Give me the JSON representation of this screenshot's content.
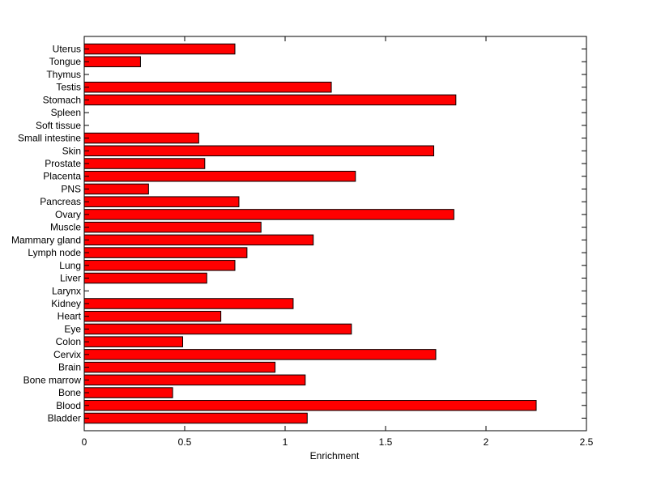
{
  "chart_data": {
    "type": "bar",
    "orientation": "horizontal",
    "title": "",
    "xlabel": "Enrichment",
    "ylabel": "",
    "xlim": [
      0,
      2.5
    ],
    "xticks": [
      "0",
      "0.5",
      "1",
      "1.5",
      "2",
      "2.5"
    ],
    "grid": false,
    "legend": "none",
    "bar_color": "#ff0000",
    "bar_edge_color": "#000000",
    "categories": [
      "Bladder",
      "Blood",
      "Bone",
      "Bone marrow",
      "Brain",
      "Cervix",
      "Colon",
      "Eye",
      "Heart",
      "Kidney",
      "Larynx",
      "Liver",
      "Lung",
      "Lymph node",
      "Mammary gland",
      "Muscle",
      "Ovary",
      "Pancreas",
      "PNS",
      "Placenta",
      "Prostate",
      "Skin",
      "Small intestine",
      "Soft tissue",
      "Spleen",
      "Stomach",
      "Testis",
      "Thymus",
      "Tongue",
      "Uterus"
    ],
    "values": [
      1.11,
      2.25,
      0.44,
      1.1,
      0.95,
      1.75,
      0.49,
      1.33,
      0.68,
      1.04,
      0,
      0.61,
      0.75,
      0.81,
      1.14,
      0.88,
      1.84,
      0.77,
      0.32,
      1.35,
      0.6,
      1.74,
      0.57,
      0,
      0,
      1.85,
      1.23,
      0,
      0.28,
      0.75
    ]
  }
}
